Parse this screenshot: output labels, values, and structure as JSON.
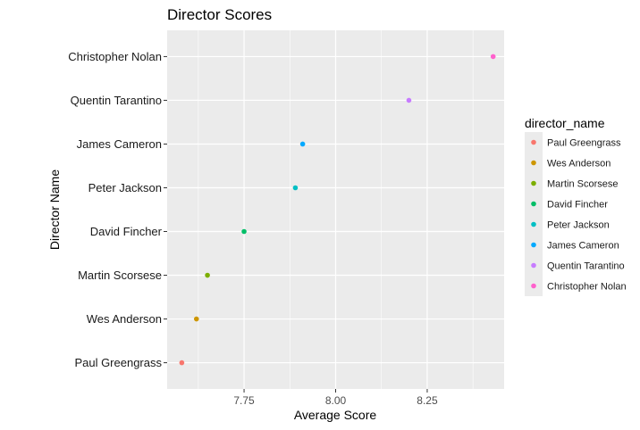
{
  "chart_data": {
    "type": "scatter",
    "title": "Director Scores",
    "xlabel": "Average Score",
    "ylabel": "Director Name",
    "xlim": [
      7.54,
      8.46
    ],
    "xticks": [
      7.75,
      8.0,
      8.25
    ],
    "xtick_labels": [
      "7.75",
      "8.00",
      "8.25"
    ],
    "grid": true,
    "legend_title": "director_name",
    "legend_position": "right",
    "categories": [
      "Paul Greengrass",
      "Wes Anderson",
      "Martin Scorsese",
      "David Fincher",
      "Peter Jackson",
      "James Cameron",
      "Quentin Tarantino",
      "Christopher Nolan"
    ],
    "values": [
      7.58,
      7.62,
      7.65,
      7.75,
      7.89,
      7.91,
      8.2,
      8.43
    ],
    "colors": [
      "#F8766D",
      "#CD9600",
      "#7CAE00",
      "#00BE67",
      "#00BFC4",
      "#00A9FF",
      "#C77CFF",
      "#FF61CC"
    ],
    "panel_background": "#EBEBEB",
    "grid_color": "#FFFFFF"
  }
}
